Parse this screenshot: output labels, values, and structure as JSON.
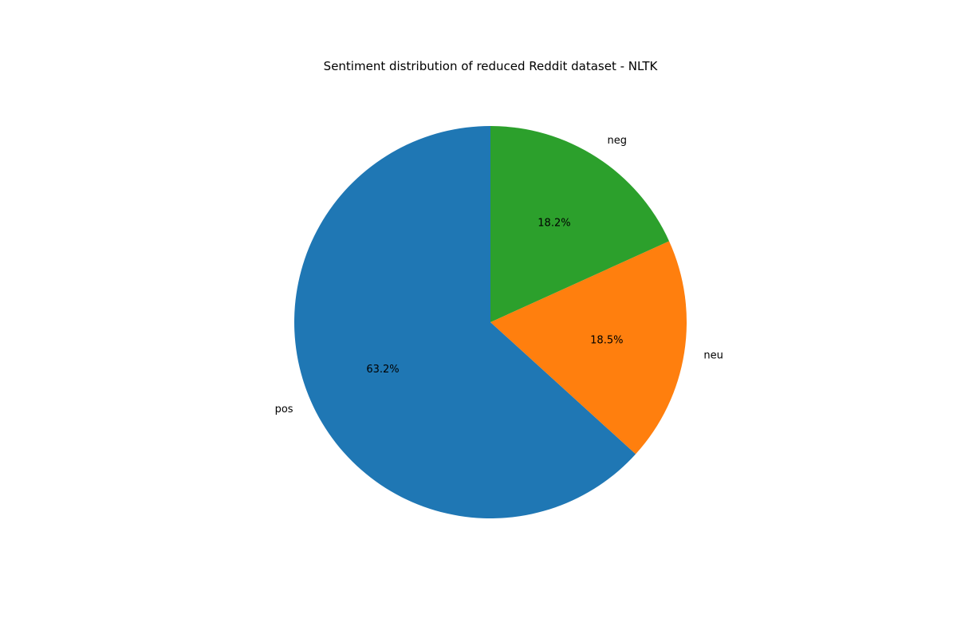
{
  "chart_data": {
    "type": "pie",
    "title": "Sentiment distribution of reduced Reddit dataset - NLTK",
    "start_angle_deg": 90,
    "direction": "counterclockwise",
    "slices": [
      {
        "label": "pos",
        "value": 63.2,
        "pct_label": "63.2%",
        "color": "#1f77b4"
      },
      {
        "label": "neu",
        "value": 18.5,
        "pct_label": "18.5%",
        "color": "#ff7f0e"
      },
      {
        "label": "neg",
        "value": 18.2,
        "pct_label": "18.2%",
        "color": "#2ca02c"
      }
    ]
  }
}
